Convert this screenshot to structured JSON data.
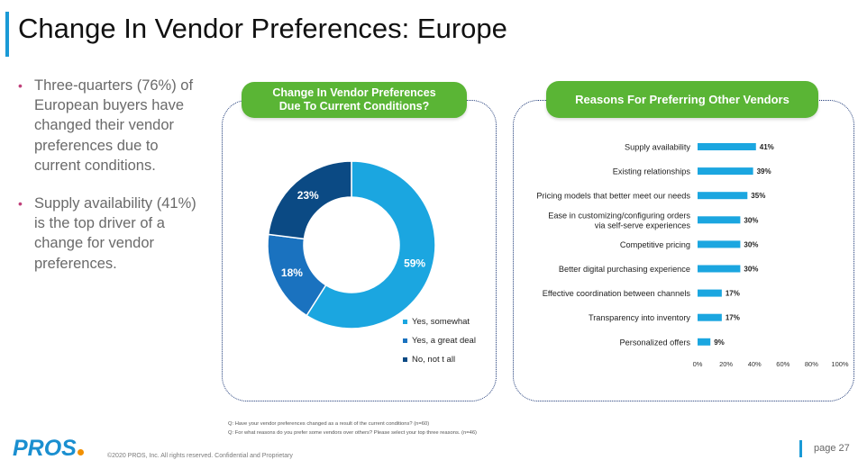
{
  "title": "Change In Vendor Preferences: Europe",
  "bullets": [
    "Three-quarters (76%) of European buyers have changed their vendor preferences due to current conditions.",
    "Supply availability (41%) is the top driver of a change for vendor preferences."
  ],
  "colors": {
    "dark_navy": "#0b4a84",
    "mid_blue": "#1a72bf",
    "light_blue": "#1ba6e0",
    "green": "#5ab535",
    "accent": "#1a9ad6"
  },
  "chart_data": [
    {
      "type": "pie",
      "title": "Change In Vendor Preferences Due To Current Conditions?",
      "title_lines": [
        "Change In Vendor Preferences",
        "Due To Current Conditions?"
      ],
      "slices": [
        {
          "label": "Yes, somewhat",
          "value": 59,
          "display": "59%",
          "color": "#1ba6e0"
        },
        {
          "label": "Yes, a great deal",
          "value": 18,
          "display": "18%",
          "color": "#1a72bf"
        },
        {
          "label": "No, not t all",
          "value": 23,
          "display": "23%",
          "color": "#0b4a84"
        }
      ]
    },
    {
      "type": "bar",
      "orientation": "horizontal",
      "title": "Reasons For Preferring Other Vendors",
      "categories": [
        [
          "Supply availability"
        ],
        [
          "Existing relationships"
        ],
        [
          "Pricing models that better meet our needs"
        ],
        [
          "Ease in customizing/configuring orders",
          "via self-serve experiences"
        ],
        [
          "Competitive pricing"
        ],
        [
          "Better digital purchasing experience"
        ],
        [
          "Effective coordination between channels"
        ],
        [
          "Transparency into inventory"
        ],
        [
          "Personalized offers"
        ]
      ],
      "values": [
        41,
        39,
        35,
        30,
        30,
        30,
        17,
        17,
        9
      ],
      "value_labels": [
        "41%",
        "39%",
        "35%",
        "30%",
        "30%",
        "30%",
        "17%",
        "17%",
        "9%"
      ],
      "xlim": [
        0,
        100
      ],
      "xticks": [
        "0%",
        "20%",
        "40%",
        "60%",
        "80%",
        "100%"
      ],
      "color": "#1ba6e0"
    }
  ],
  "footnotes": [
    "Q:  Have your vendor preferences changed as a result of the current conditions? (n=60)",
    "Q: For what reasons do you prefer some vendors over others? Please select your top three reasons. (n=46)"
  ],
  "logo": "PROS",
  "copyright": "©2020 PROS, Inc. All rights reserved. Confidential and Proprietary",
  "page": "page 27"
}
